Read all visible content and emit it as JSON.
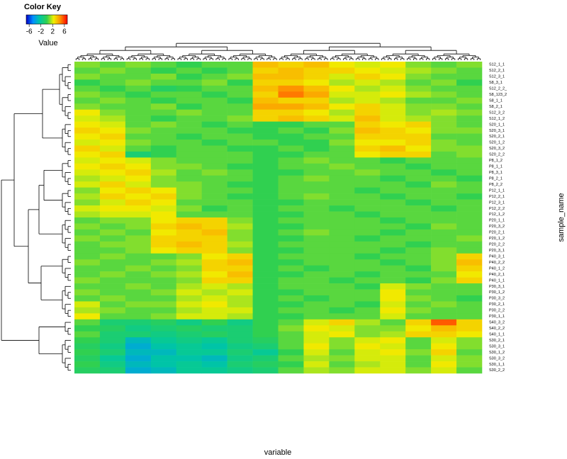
{
  "chart_data": {
    "type": "heatmap",
    "key_title": "Color Key",
    "key_label": "Value",
    "clim": [
      -7,
      7
    ],
    "key_ticks": [
      -6,
      -2,
      2,
      6
    ],
    "colors": [
      "#0000c8",
      "#0090ff",
      "#00c8a0",
      "#30d050",
      "#f0f000",
      "#ff8c00",
      "#ff0000"
    ],
    "xlabel": "variable",
    "ylabel": "sample_name",
    "rows": [
      "S12_1_1",
      "S12_2_1",
      "S12_3_1",
      "S8_3_1",
      "S12_2_2_",
      "S8_123_2",
      "S8_1_1",
      "S8_2_1",
      "S12_3_2",
      "S12_1_2",
      "S20_1_1",
      "S20_3_1",
      "S20_2_1",
      "S20_1_2",
      "S20_3_2",
      "S20_2_2",
      "P8_1_2",
      "P8_1_1",
      "P8_3_1",
      "P8_2_1",
      "P8_2_2",
      "P12_1_1",
      "P12_2_1",
      "P12_3_1",
      "P12_2_2",
      "P12_1_2",
      "P20_1_1",
      "P20_3_2",
      "P20_2_1",
      "P20_1_2",
      "P20_2_2",
      "P20_3_1",
      "P40_3_1",
      "P40_2_2",
      "P40_1_2",
      "P40_2_1",
      "P40_1_1",
      "P30_3_1",
      "P30_1_2",
      "P30_3_2",
      "P30_2_1",
      "P30_2_2",
      "P30_1_1",
      "S40_3_2",
      "S40_2_2",
      "S40_1_1",
      "S30_2_1",
      "S30_3_1",
      "S30_1_2",
      "S30_3_2",
      "S30_1_1",
      "S30_2_2"
    ],
    "values": [
      [
        1,
        0.5,
        1,
        0.5,
        0,
        0.5,
        0.5,
        3.5,
        3,
        3.5,
        2.5,
        2,
        2.5,
        1,
        0.5,
        1
      ],
      [
        0.5,
        1,
        0.5,
        0,
        0.5,
        0,
        0.5,
        3,
        3.5,
        3,
        3,
        2.5,
        2,
        1.5,
        1,
        0.5
      ],
      [
        1,
        0.5,
        0.5,
        1,
        0,
        0.5,
        1,
        3.5,
        3.5,
        3,
        2,
        3,
        2.5,
        1,
        0.5,
        0.5
      ],
      [
        0,
        0.5,
        1,
        0.5,
        0.5,
        1,
        0,
        3,
        3,
        2.5,
        1.5,
        2,
        1.5,
        0.5,
        1,
        0
      ],
      [
        0.5,
        0,
        0.5,
        -0.5,
        0,
        0.5,
        0.5,
        3.5,
        4.5,
        3.5,
        2.5,
        1.5,
        2,
        1,
        0.5,
        0.5
      ],
      [
        1,
        0.5,
        0,
        0.5,
        0.5,
        0,
        0.5,
        3,
        5,
        4,
        2,
        2,
        2.5,
        1.5,
        1,
        0.5
      ],
      [
        0.5,
        1,
        0.5,
        0,
        0.5,
        0.5,
        0,
        3.5,
        3,
        3,
        1.5,
        2,
        1.5,
        0.5,
        0.5,
        1
      ],
      [
        1,
        0.5,
        0.5,
        1,
        0,
        0.5,
        0.5,
        4,
        4,
        3.5,
        2.5,
        3,
        2,
        1,
        1,
        0.5
      ],
      [
        2.5,
        1,
        0.5,
        0.5,
        1,
        0.5,
        0.5,
        3,
        3,
        2.5,
        1.5,
        3,
        2,
        1,
        1.5,
        1
      ],
      [
        2,
        1.5,
        0.5,
        0,
        0.5,
        0.5,
        1,
        3,
        3.5,
        3,
        2,
        3.5,
        2,
        1.5,
        1,
        0.5
      ],
      [
        2.5,
        2,
        0.5,
        1,
        0.5,
        0,
        0.5,
        0,
        0,
        0.5,
        0.5,
        3,
        2.5,
        3,
        1,
        0.5
      ],
      [
        3,
        2.5,
        1,
        0.5,
        0.5,
        0.5,
        0,
        0,
        0.5,
        0,
        1,
        3.5,
        3,
        2.5,
        1,
        1
      ],
      [
        2.5,
        3,
        0.5,
        0.5,
        0,
        0.5,
        0.5,
        0,
        0,
        0.5,
        0.5,
        3,
        3,
        3,
        0.5,
        0.5
      ],
      [
        2,
        2.5,
        1,
        0.5,
        0.5,
        0,
        0.5,
        0.5,
        0,
        0,
        1,
        2.5,
        2.5,
        3,
        1,
        0.5
      ],
      [
        3,
        2,
        0.5,
        0,
        0.5,
        0.5,
        0,
        0,
        0.5,
        0,
        0.5,
        3,
        3.5,
        2.5,
        1,
        1
      ],
      [
        2.5,
        3,
        -1,
        0,
        0.5,
        0.5,
        0.5,
        0,
        0,
        0.5,
        0.5,
        2.5,
        3,
        3,
        0.5,
        1
      ],
      [
        2,
        2.5,
        2,
        1,
        0.5,
        0.5,
        0.5,
        0,
        0.5,
        1,
        0.5,
        0.5,
        0,
        0.5,
        0.5,
        0.5
      ],
      [
        2.5,
        3,
        2.5,
        1,
        1,
        0.5,
        0,
        0,
        0.5,
        0.5,
        1,
        0.5,
        0.5,
        0,
        0.5,
        0.5
      ],
      [
        2,
        2.5,
        3,
        1.5,
        0.5,
        1,
        0.5,
        0,
        0,
        0.5,
        0.5,
        1,
        0.5,
        0.5,
        0,
        0.5
      ],
      [
        1.5,
        2,
        2.5,
        1,
        0.5,
        0.5,
        0.5,
        0,
        0.5,
        1,
        0.5,
        0.5,
        0,
        0.5,
        0.5,
        0
      ],
      [
        2,
        3,
        2,
        1,
        1,
        0.5,
        0,
        0,
        0.5,
        0.5,
        0.5,
        0.5,
        0.5,
        0,
        1,
        0.5
      ],
      [
        1,
        2.5,
        3,
        2.5,
        1,
        0.5,
        0.5,
        0,
        0.5,
        0.5,
        0.5,
        0,
        0.5,
        0.5,
        0.5,
        0.5
      ],
      [
        1.5,
        3,
        2.5,
        3,
        1,
        0.5,
        0,
        0,
        0.5,
        1,
        0.5,
        0.5,
        0,
        0.5,
        0.5,
        0
      ],
      [
        1,
        2,
        3,
        2.5,
        0.5,
        0.5,
        0.5,
        0,
        0,
        0.5,
        0.5,
        0.5,
        0.5,
        0,
        0.5,
        0.5
      ],
      [
        2,
        2.5,
        2.5,
        2,
        1,
        0,
        0.5,
        0,
        0.5,
        0.5,
        0,
        0.5,
        0.5,
        0.5,
        0,
        0.5
      ],
      [
        1.5,
        2,
        2,
        2.5,
        0.5,
        0.5,
        0.5,
        0,
        0,
        0.5,
        0.5,
        0,
        0.5,
        0.5,
        0.5,
        0.5
      ],
      [
        0.5,
        1,
        1,
        2.5,
        3,
        3,
        1,
        0,
        0.5,
        0.5,
        0.5,
        0.5,
        0,
        0.5,
        0.5,
        0.5
      ],
      [
        1,
        0.5,
        1,
        3,
        3.5,
        3,
        1.5,
        0,
        0,
        0.5,
        0.5,
        0.5,
        0.5,
        0,
        1,
        0.5
      ],
      [
        0.5,
        1,
        0.5,
        2.5,
        3,
        3.5,
        1,
        0,
        0.5,
        1,
        0.5,
        0.5,
        0,
        0.5,
        0.5,
        0.5
      ],
      [
        1,
        0.5,
        1,
        3,
        3,
        3,
        1,
        0,
        0,
        0.5,
        0.5,
        0,
        0.5,
        0.5,
        0.5,
        1
      ],
      [
        0.5,
        1,
        1,
        3,
        3.5,
        3,
        1.5,
        0,
        0.5,
        0.5,
        0.5,
        0.5,
        0.5,
        0,
        0.5,
        0.5
      ],
      [
        0.5,
        0.5,
        1,
        2.5,
        3,
        3,
        1,
        0,
        0,
        0.5,
        0.5,
        0.5,
        0,
        0.5,
        1,
        0.5
      ],
      [
        0.5,
        1,
        0.5,
        0.5,
        1,
        2.5,
        3,
        0,
        0.5,
        0.5,
        0.5,
        0,
        0.5,
        0.5,
        1,
        3
      ],
      [
        1,
        0.5,
        0.5,
        1,
        1.5,
        3,
        3.5,
        0,
        0,
        0.5,
        0.5,
        0.5,
        0,
        0.5,
        1,
        3.5
      ],
      [
        0.5,
        0.5,
        1,
        0.5,
        1,
        3,
        3,
        0,
        0.5,
        0,
        0.5,
        0.5,
        0.5,
        0,
        1,
        3
      ],
      [
        0.5,
        1,
        0.5,
        1,
        1.5,
        2.5,
        3.5,
        0,
        0,
        0.5,
        0.5,
        0,
        0.5,
        0.5,
        0.5,
        2.5
      ],
      [
        1,
        0.5,
        0.5,
        0.5,
        1,
        3,
        3,
        0,
        0.5,
        0.5,
        0,
        0.5,
        0.5,
        0,
        1,
        3
      ],
      [
        0.5,
        0.5,
        1,
        0.5,
        1.5,
        2,
        1.5,
        0,
        0.5,
        0.5,
        0.5,
        0,
        2,
        1,
        0.5,
        0.5
      ],
      [
        1,
        0.5,
        0.5,
        1,
        2,
        1.5,
        2,
        0,
        0,
        0.5,
        0.5,
        0.5,
        2.5,
        0.5,
        0.5,
        0.5
      ],
      [
        0.5,
        1,
        0.5,
        0.5,
        1.5,
        2,
        1.5,
        0,
        0.5,
        0,
        0.5,
        0.5,
        2.5,
        1,
        0.5,
        0
      ],
      [
        2,
        0.5,
        1,
        1,
        2,
        2.5,
        1.5,
        0,
        0,
        0.5,
        0.5,
        0,
        2,
        0.5,
        1,
        0.5
      ],
      [
        1.5,
        1,
        0.5,
        0.5,
        1.5,
        2,
        2,
        0,
        0.5,
        0.5,
        0,
        0.5,
        2.5,
        1,
        0.5,
        0.5
      ],
      [
        2.5,
        0.5,
        0.5,
        1,
        2,
        2,
        1.5,
        0,
        0,
        0.5,
        0.5,
        0.5,
        2,
        0.5,
        0.5,
        0.5
      ],
      [
        0.5,
        -1,
        -1,
        -0.5,
        -1.5,
        0,
        -1.5,
        0,
        0.5,
        2,
        3,
        1.5,
        0.5,
        3,
        5.5,
        3
      ],
      [
        0,
        -0.5,
        -1.5,
        -1,
        -0.5,
        -1,
        -1,
        0,
        1,
        2.5,
        2,
        1,
        1,
        2.5,
        3.5,
        3
      ],
      [
        0.5,
        -1,
        -1,
        -1.5,
        -1,
        -0.5,
        -1,
        0,
        0.5,
        2,
        2.5,
        1,
        1.5,
        3,
        3,
        2.5
      ],
      [
        0,
        -1,
        -3,
        -2,
        -1.5,
        -2,
        -1,
        -0.5,
        0.5,
        2,
        1,
        2,
        2.5,
        0.5,
        2,
        1
      ],
      [
        -0.5,
        -1.5,
        -3.5,
        -2.5,
        -2,
        -2.5,
        -1.5,
        -1,
        0.5,
        2.5,
        1,
        2.5,
        2,
        0.5,
        2.5,
        1
      ],
      [
        0,
        -1,
        -3,
        -3,
        -2,
        -2,
        -1,
        -2,
        0,
        2,
        0.5,
        2,
        2.5,
        1,
        3,
        0.5
      ],
      [
        -0.5,
        -2,
        -3.5,
        -2.5,
        -2.5,
        -3,
        -1.5,
        -1,
        0.5,
        1.5,
        1,
        2,
        2,
        0.5,
        2,
        1
      ],
      [
        0,
        -1.5,
        -3,
        -2.5,
        -2,
        -2.5,
        -1,
        -0.5,
        0,
        2,
        0.5,
        1.5,
        2,
        0.5,
        2.5,
        1
      ],
      [
        -0.5,
        -1,
        -3.5,
        -3,
        -2,
        -2,
        -1.5,
        -1,
        0.5,
        1.5,
        1,
        2,
        2,
        1,
        2,
        0.5
      ]
    ]
  }
}
